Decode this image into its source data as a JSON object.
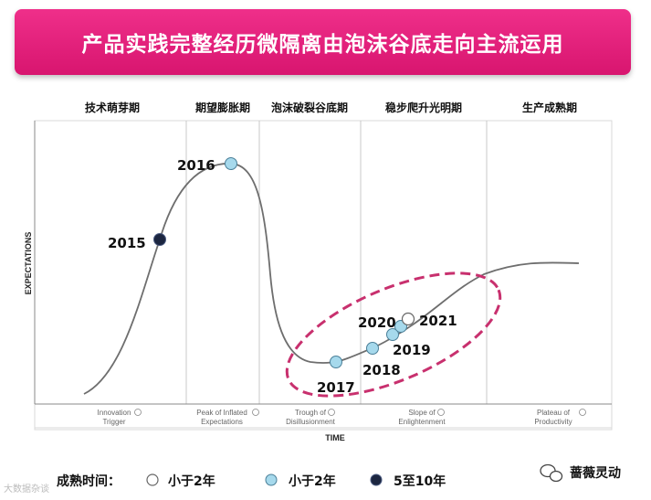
{
  "title": "产品实践完整经历微隔离由泡沫谷底走向主流运用",
  "colors": {
    "banner": "#e0207a",
    "dashed": "#c8306e",
    "light_blue": "#a6d9ec",
    "dark_navy": "#1c2640",
    "white_dot": "#ffffff"
  },
  "chart_data": {
    "type": "line",
    "title": "",
    "xlabel": "TIME",
    "ylabel": "EXPECTATIONS",
    "phases_cn": [
      "技术萌芽期",
      "期望膨胀期",
      "泡沫破裂谷底期",
      "稳步爬升光明期",
      "生产成熟期"
    ],
    "phases_en": [
      [
        "Innovation",
        "Trigger"
      ],
      [
        "Peak of Inflated",
        "Expectations"
      ],
      [
        "Trough of",
        "Disillusionment"
      ],
      [
        "Slope of",
        "Enlightenment"
      ],
      [
        "Plateau of",
        "Productivity"
      ]
    ],
    "points": [
      {
        "year": "2015",
        "category": "5至10年"
      },
      {
        "year": "2016",
        "category": "小于2年"
      },
      {
        "year": "2017",
        "category": "小于2年"
      },
      {
        "year": "2018",
        "category": "小于2年"
      },
      {
        "year": "2019",
        "category": "小于2年"
      },
      {
        "year": "2020",
        "category": "小于2年"
      },
      {
        "year": "2021",
        "category": "小于2年"
      }
    ],
    "legend": {
      "title": "成熟时间：",
      "items": [
        {
          "label": "小于2年",
          "color": "#ffffff"
        },
        {
          "label": "小于2年",
          "color": "#a6d9ec"
        },
        {
          "label": "5至10年",
          "color": "#1c2640"
        }
      ]
    },
    "grid": true,
    "legend_position": "bottom"
  },
  "brand": {
    "name": "蔷薇灵动",
    "icon": "wechat-icon"
  },
  "watermark": "大数据杂谈"
}
